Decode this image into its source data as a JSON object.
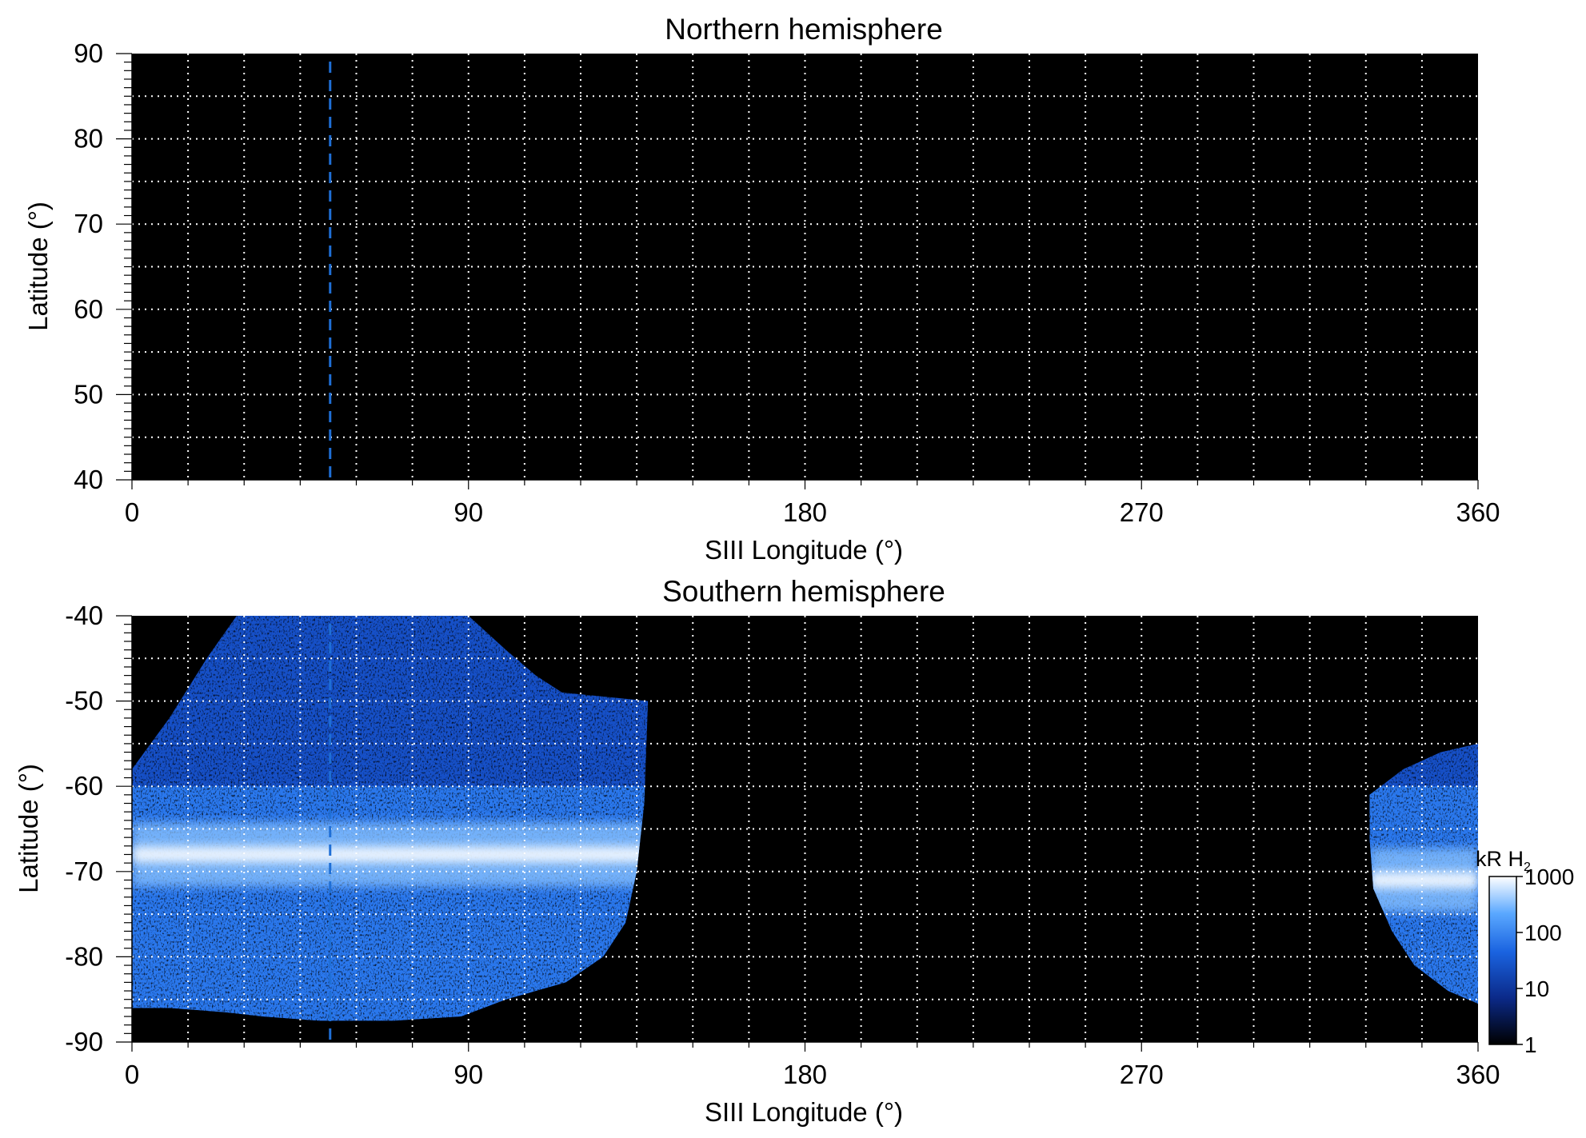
{
  "chart_data": [
    {
      "type": "heatmap",
      "title": "Northern hemisphere",
      "xlabel": "SIII Longitude (°)",
      "ylabel": "Latitude (°)",
      "xlim": [
        0,
        360
      ],
      "ylim": [
        40,
        90
      ],
      "x_ticks": [
        0,
        90,
        180,
        270,
        360
      ],
      "y_ticks": [
        40,
        50,
        60,
        70,
        80,
        90
      ],
      "x_tick_labels": [
        "0",
        "90",
        "180",
        "270",
        "360"
      ],
      "y_tick_labels": [
        "40",
        "50",
        "60",
        "70",
        "80",
        "90"
      ],
      "grid": {
        "on": true,
        "style": "dotted",
        "color": "#ffffff",
        "x_step": 15,
        "y_step": 5
      },
      "background": "#000000",
      "reference_line": {
        "longitude": 53,
        "style": "dashed",
        "color": "#1f6fd6"
      },
      "emission_regions": []
    },
    {
      "type": "heatmap",
      "title": "Southern hemisphere",
      "xlabel": "SIII Longitude (°)",
      "ylabel": "Latitude (°)",
      "xlim": [
        0,
        360
      ],
      "ylim": [
        -90,
        -40
      ],
      "x_ticks": [
        0,
        90,
        180,
        270,
        360
      ],
      "y_ticks": [
        -90,
        -80,
        -70,
        -60,
        -50,
        -40
      ],
      "x_tick_labels": [
        "0",
        "90",
        "180",
        "270",
        "360"
      ],
      "y_tick_labels": [
        "-90",
        "-80",
        "-70",
        "-60",
        "-50",
        "-40"
      ],
      "grid": {
        "on": true,
        "style": "dotted",
        "color": "#ffffff",
        "x_step": 15,
        "y_step": 5
      },
      "background": "#000000",
      "reference_line": {
        "longitude": 53,
        "style": "dashed",
        "color": "#1f6fd6"
      },
      "emission_regions": [
        {
          "name": "west-region",
          "outline": [
            [
              0,
              -58
            ],
            [
              10,
              -52
            ],
            [
              20,
              -45
            ],
            [
              28,
              -40
            ],
            [
              90,
              -40
            ],
            [
              100,
              -44
            ],
            [
              108,
              -47
            ],
            [
              115,
              -49
            ],
            [
              138,
              -50
            ],
            [
              137,
              -62
            ],
            [
              135,
              -70
            ],
            [
              132,
              -76
            ],
            [
              126,
              -80
            ],
            [
              116,
              -83
            ],
            [
              100,
              -85
            ],
            [
              88,
              -87
            ],
            [
              70,
              -87.5
            ],
            [
              50,
              -87.5
            ],
            [
              35,
              -87
            ],
            [
              25,
              -86.5
            ],
            [
              10,
              -86
            ],
            [
              0,
              -86
            ]
          ],
          "main_oval_lat": -68,
          "peak_kR": 1000
        },
        {
          "name": "east-region",
          "outline": [
            [
              331,
              -61
            ],
            [
              340,
              -58
            ],
            [
              350,
              -56
            ],
            [
              360,
              -55
            ],
            [
              360,
              -85.5
            ],
            [
              352,
              -84
            ],
            [
              343,
              -81
            ],
            [
              337,
              -77
            ],
            [
              332,
              -72
            ],
            [
              331,
              -66
            ]
          ],
          "main_oval_lat": -71,
          "peak_kR": 1000
        }
      ]
    }
  ],
  "colorbar": {
    "label": "kR H",
    "label_subscript": "2",
    "scale": "log",
    "ticks": [
      "1",
      "10",
      "100",
      "1000"
    ],
    "range": [
      1,
      1000
    ],
    "colors": [
      "#000000",
      "#0b2a8a",
      "#1a63e0",
      "#5aa8ff",
      "#ffffff"
    ]
  }
}
